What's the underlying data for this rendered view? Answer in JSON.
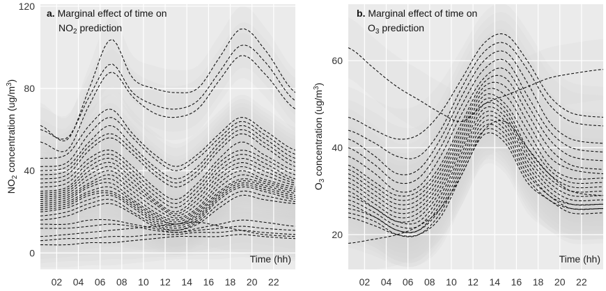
{
  "colors": {
    "panel_bg": "#ebebeb",
    "grid": "#ffffff",
    "band": "#d2d2d2",
    "curve": "#111111"
  },
  "chart_data": [
    {
      "type": "line",
      "panel_letter": "a",
      "title_line1": "Marginal effect of time on",
      "title_line2_main": "NO",
      "title_line2_sub": "2",
      "title_line2_rest": " prediction",
      "xlabel": "Time (hh)",
      "ylabel_main": "NO",
      "ylabel_sub": "2",
      "ylabel_rest": " concentration (ug/m",
      "ylabel_sup": "3",
      "ylabel_end": ")",
      "x_ticks": [
        "02",
        "04",
        "06",
        "08",
        "10",
        "12",
        "14",
        "16",
        "18",
        "20",
        "22"
      ],
      "x_tick_values": [
        2,
        4,
        6,
        8,
        10,
        12,
        14,
        16,
        18,
        20,
        22
      ],
      "y_ticks": [
        "0",
        "40",
        "80",
        "120"
      ],
      "y_tick_values": [
        0,
        40,
        80,
        120
      ],
      "xlim": [
        0.5,
        24
      ],
      "ylim": [
        -8,
        121
      ],
      "line_style": "dashed",
      "band_halfwidth": 11,
      "grid": true,
      "x_knots": [
        0.5,
        3,
        5,
        7,
        9,
        11,
        13,
        15,
        17,
        19,
        21,
        24
      ],
      "series": [
        {
          "values": [
            62,
            55,
            80,
            104,
            85,
            80,
            78,
            80,
            95,
            109,
            100,
            78
          ]
        },
        {
          "values": [
            60,
            56,
            76,
            92,
            78,
            72,
            70,
            74,
            88,
            101,
            94,
            74
          ]
        },
        {
          "values": [
            54,
            50,
            72,
            88,
            76,
            68,
            66,
            70,
            84,
            96,
            88,
            70
          ]
        },
        {
          "values": [
            46,
            48,
            62,
            70,
            58,
            48,
            42,
            48,
            58,
            66,
            60,
            50
          ]
        },
        {
          "values": [
            42,
            44,
            58,
            66,
            56,
            46,
            40,
            46,
            56,
            64,
            58,
            48
          ]
        },
        {
          "values": [
            40,
            42,
            54,
            62,
            52,
            42,
            36,
            42,
            54,
            62,
            56,
            46
          ]
        },
        {
          "values": [
            38,
            40,
            52,
            58,
            50,
            40,
            34,
            40,
            52,
            60,
            54,
            44
          ]
        },
        {
          "values": [
            36,
            38,
            50,
            56,
            48,
            38,
            32,
            38,
            50,
            58,
            52,
            42
          ]
        },
        {
          "values": [
            34,
            36,
            46,
            50,
            42,
            32,
            26,
            34,
            46,
            54,
            48,
            40
          ]
        },
        {
          "values": [
            32,
            34,
            44,
            48,
            40,
            30,
            24,
            32,
            44,
            50,
            46,
            38
          ]
        },
        {
          "values": [
            30,
            32,
            42,
            46,
            38,
            28,
            22,
            30,
            42,
            48,
            44,
            36
          ]
        },
        {
          "values": [
            29,
            31,
            40,
            44,
            36,
            26,
            20,
            28,
            40,
            46,
            42,
            35
          ]
        },
        {
          "values": [
            28,
            30,
            38,
            42,
            34,
            25,
            19,
            26,
            38,
            44,
            40,
            34
          ]
        },
        {
          "values": [
            27,
            29,
            36,
            40,
            32,
            24,
            18,
            24,
            36,
            42,
            38,
            33
          ]
        },
        {
          "values": [
            26,
            28,
            34,
            38,
            30,
            22,
            17,
            22,
            34,
            40,
            36,
            32
          ]
        },
        {
          "values": [
            25,
            27,
            33,
            36,
            28,
            20,
            16,
            21,
            32,
            38,
            35,
            31
          ]
        },
        {
          "values": [
            24,
            26,
            32,
            34,
            26,
            19,
            15,
            20,
            30,
            36,
            34,
            30
          ]
        },
        {
          "values": [
            23,
            25,
            30,
            32,
            25,
            18,
            14,
            19,
            29,
            35,
            33,
            29
          ]
        },
        {
          "values": [
            22,
            24,
            29,
            30,
            24,
            17,
            14,
            18,
            28,
            34,
            32,
            28
          ]
        },
        {
          "values": [
            21,
            23,
            28,
            29,
            23,
            16,
            13,
            17,
            27,
            33,
            31,
            27
          ]
        },
        {
          "values": [
            20,
            22,
            26,
            28,
            22,
            15,
            12,
            16,
            26,
            32,
            30,
            26
          ]
        },
        {
          "values": [
            18,
            20,
            24,
            26,
            20,
            14,
            11,
            15,
            24,
            30,
            28,
            25
          ]
        },
        {
          "values": [
            16,
            18,
            22,
            24,
            19,
            13,
            11,
            14,
            22,
            28,
            26,
            24
          ]
        },
        {
          "values": [
            14,
            14,
            16,
            16,
            14,
            12,
            10,
            12,
            14,
            16,
            15,
            13
          ]
        },
        {
          "values": [
            12,
            12,
            13,
            14,
            13,
            11,
            10,
            11,
            12,
            13,
            12,
            11
          ]
        },
        {
          "values": [
            8,
            9,
            10,
            11,
            12,
            13,
            14,
            15,
            13,
            11,
            9,
            8
          ]
        },
        {
          "values": [
            6,
            7,
            7,
            8,
            8,
            9,
            9,
            10,
            10,
            11,
            10,
            9
          ]
        },
        {
          "values": [
            4,
            4,
            5,
            5,
            6,
            7,
            8,
            8,
            8,
            9,
            8,
            7
          ]
        }
      ]
    },
    {
      "type": "line",
      "panel_letter": "b",
      "title_line1": "Marginal effect of time on",
      "title_line2_main": "O",
      "title_line2_sub": "3",
      "title_line2_rest": " prediction",
      "xlabel": "Time (hh)",
      "ylabel_main": "O",
      "ylabel_sub": "3",
      "ylabel_rest": " concentration (ug/m",
      "ylabel_sup": "3",
      "ylabel_end": ")",
      "x_ticks": [
        "02",
        "04",
        "06",
        "08",
        "10",
        "12",
        "14",
        "16",
        "18",
        "20",
        "22"
      ],
      "x_tick_values": [
        2,
        4,
        6,
        8,
        10,
        12,
        14,
        16,
        18,
        20,
        22
      ],
      "y_ticks": [
        "20",
        "40",
        "60"
      ],
      "y_tick_values": [
        20,
        40,
        60
      ],
      "xlim": [
        0.5,
        24
      ],
      "ylim": [
        12,
        73
      ],
      "line_style": "dashed",
      "band_halfwidth": 7,
      "grid": true,
      "x_knots": [
        0.5,
        3,
        5,
        7,
        9,
        11,
        13,
        15,
        17,
        19,
        21,
        24
      ],
      "series": [
        {
          "values": [
            63,
            58,
            54,
            51,
            48,
            46,
            50,
            52,
            54,
            56,
            57,
            58
          ]
        },
        {
          "values": [
            47,
            44,
            42,
            43,
            48,
            56,
            64,
            66,
            60,
            52,
            48,
            47
          ]
        },
        {
          "values": [
            44,
            41,
            38,
            38,
            44,
            54,
            62,
            64,
            58,
            50,
            46,
            45
          ]
        },
        {
          "values": [
            42,
            38,
            34,
            35,
            42,
            52,
            60,
            62,
            55,
            46,
            42,
            41
          ]
        },
        {
          "values": [
            40,
            36,
            32,
            33,
            40,
            50,
            58,
            60,
            52,
            44,
            40,
            39
          ]
        },
        {
          "values": [
            38,
            34,
            30,
            31,
            38,
            48,
            56,
            58,
            50,
            42,
            38,
            37
          ]
        },
        {
          "values": [
            36,
            32,
            29,
            30,
            36,
            46,
            55,
            56,
            48,
            40,
            36,
            35
          ]
        },
        {
          "values": [
            35,
            31,
            28,
            29,
            35,
            45,
            54,
            54,
            46,
            38,
            35,
            34
          ]
        },
        {
          "values": [
            34,
            30,
            27,
            28,
            34,
            44,
            53,
            52,
            44,
            36,
            33,
            33
          ]
        },
        {
          "values": [
            33,
            29,
            26,
            27,
            33,
            43,
            52,
            50,
            42,
            35,
            32,
            32
          ]
        },
        {
          "values": [
            32,
            28,
            25,
            26,
            32,
            42,
            51,
            49,
            40,
            34,
            31,
            31
          ]
        },
        {
          "values": [
            31,
            27,
            24,
            25,
            31,
            41,
            50,
            48,
            39,
            33,
            30,
            30
          ]
        },
        {
          "values": [
            30,
            26,
            23,
            24,
            30,
            40,
            49,
            47,
            38,
            32,
            29,
            29
          ]
        },
        {
          "values": [
            29,
            26,
            23,
            23,
            29,
            39,
            48,
            46,
            37,
            31,
            28,
            28
          ]
        },
        {
          "values": [
            28,
            25,
            22,
            22,
            28,
            38,
            47,
            45,
            36,
            30,
            27,
            27
          ]
        },
        {
          "values": [
            27,
            24,
            21,
            21,
            27,
            37,
            46,
            44,
            35,
            29,
            27,
            27
          ]
        },
        {
          "values": [
            26,
            24,
            21,
            21,
            26,
            36,
            45,
            43,
            34,
            29,
            26,
            26
          ]
        },
        {
          "values": [
            25,
            23,
            20,
            20,
            25,
            35,
            44,
            42,
            33,
            28,
            26,
            26
          ]
        },
        {
          "values": [
            24,
            22,
            20,
            20,
            24,
            34,
            43,
            41,
            32,
            28,
            25,
            25
          ]
        },
        {
          "values": [
            18,
            19,
            20,
            22,
            26,
            34,
            44,
            46,
            40,
            34,
            30,
            29
          ]
        }
      ]
    }
  ]
}
